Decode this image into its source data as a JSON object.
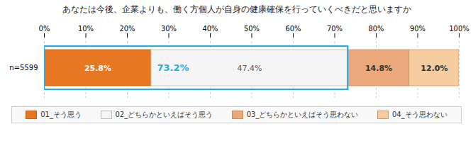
{
  "chart_data": {
    "type": "bar",
    "orientation": "horizontal",
    "stacked": true,
    "title": "あなたは今後、企業よりも、働く方個人が自身の健康確保を行っていくべきだと思いますか",
    "categories": [
      "n=5599"
    ],
    "series": [
      {
        "name": "01_そう思う",
        "color": "#E87722",
        "values": [
          25.8
        ],
        "value_labels": [
          "25.8%"
        ]
      },
      {
        "name": "02_どちらかといえばそう思う",
        "color": "#F5F5F5",
        "values": [
          47.4
        ],
        "value_labels": [
          "47.4%"
        ]
      },
      {
        "name": "03_どちらかといえばそう思わない",
        "color": "#EBA87A",
        "values": [
          14.8
        ],
        "value_labels": [
          "14.8%"
        ]
      },
      {
        "name": "04_そう思わない",
        "color": "#F5CBA0",
        "values": [
          12.0
        ],
        "value_labels": [
          "12.0%"
        ]
      }
    ],
    "xlim": [
      0,
      100
    ],
    "xticks": [
      {
        "value": 0,
        "label": "0%"
      },
      {
        "value": 10,
        "label": "10%"
      },
      {
        "value": 20,
        "label": "20%"
      },
      {
        "value": 30,
        "label": "30%"
      },
      {
        "value": 40,
        "label": "40%"
      },
      {
        "value": 50,
        "label": "50%"
      },
      {
        "value": 60,
        "label": "60%"
      },
      {
        "value": 70,
        "label": "70%"
      },
      {
        "value": 80,
        "label": "80%"
      },
      {
        "value": 90,
        "label": "90%"
      },
      {
        "value": 100,
        "label": "100%"
      }
    ],
    "grid": true,
    "data_labels": true,
    "legend": "bottom",
    "annotations": [
      {
        "text": "73.2%",
        "x": 73.2,
        "color": "#29ABE2"
      }
    ]
  }
}
